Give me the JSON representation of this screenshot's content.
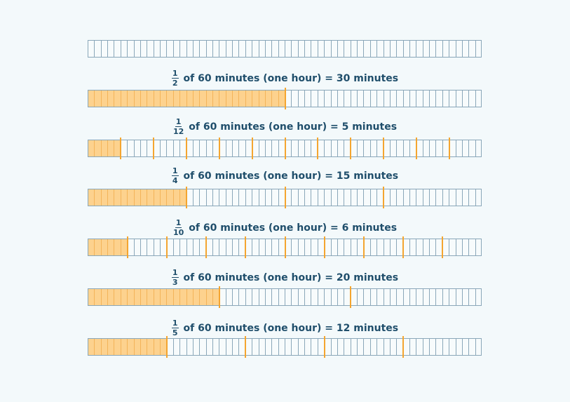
{
  "total_cells": 60,
  "colors": {
    "fill": "#fdd28e",
    "marker": "#f4a530",
    "grid": "#8aa7b9",
    "text": "#1f4e6b"
  },
  "bars": [
    {
      "label": null,
      "numerator": null,
      "denominator": null
    },
    {
      "numerator": "1",
      "denominator": "2",
      "text": "of 60 minutes (one hour) = 30 minutes",
      "minutes": 30
    },
    {
      "numerator": "1",
      "denominator": "12",
      "text": "of 60 minutes (one hour) = 5 minutes",
      "minutes": 5
    },
    {
      "numerator": "1",
      "denominator": "4",
      "text": "of 60 minutes (one hour) = 15 minutes",
      "minutes": 15
    },
    {
      "numerator": "1",
      "denominator": "10",
      "text": "of 60 minutes (one hour) = 6 minutes",
      "minutes": 6
    },
    {
      "numerator": "1",
      "denominator": "3",
      "text": "of 60 minutes (one hour) = 20 minutes",
      "minutes": 20
    },
    {
      "numerator": "1",
      "denominator": "5",
      "text": "of 60 minutes (one hour) = 12 minutes",
      "minutes": 12
    }
  ]
}
